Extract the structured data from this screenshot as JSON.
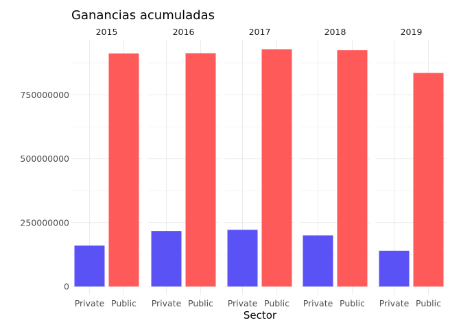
{
  "chart_data": {
    "type": "bar",
    "title": "Ganancias acumuladas",
    "xlabel": "Sector",
    "ylabel": "",
    "ylim": [
      0,
      1000000000
    ],
    "yticks": [
      0,
      250000000,
      500000000,
      750000000
    ],
    "ytick_labels": [
      "0",
      "250000000",
      "500000000",
      "750000000"
    ],
    "grid": true,
    "legend": false,
    "categories": [
      "Private",
      "Public"
    ],
    "colors": {
      "Private": "#5b52f5",
      "Public": "#ff5a5a"
    },
    "facets": [
      {
        "label": "2015",
        "values": [
          160000000,
          912000000
        ]
      },
      {
        "label": "2016",
        "values": [
          217000000,
          913000000
        ]
      },
      {
        "label": "2017",
        "values": [
          222000000,
          928000000
        ]
      },
      {
        "label": "2018",
        "values": [
          200000000,
          925000000
        ]
      },
      {
        "label": "2019",
        "values": [
          140000000,
          836000000
        ]
      }
    ]
  }
}
